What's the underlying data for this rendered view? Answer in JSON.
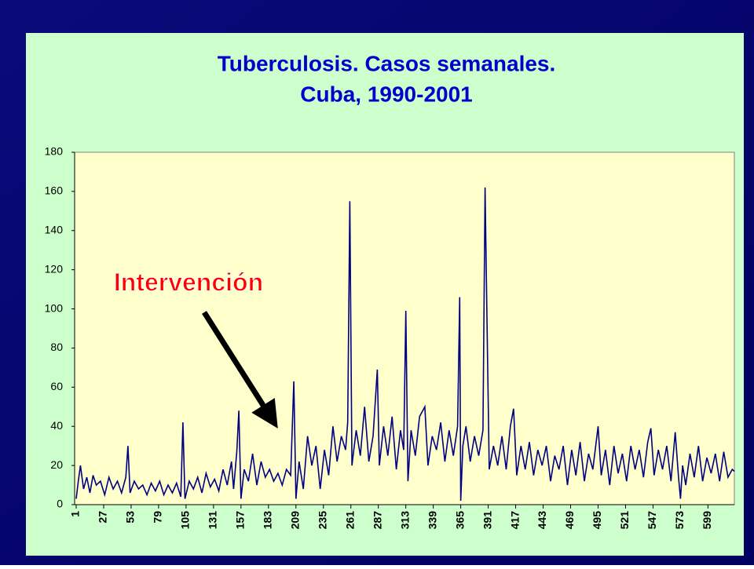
{
  "chart_data": {
    "type": "line",
    "title": "Tuberculosis. Casos semanales.",
    "subtitle": "Cuba, 1990-2001",
    "annotation": "Intervención",
    "xlim": [
      1,
      624
    ],
    "xticks": [
      1,
      27,
      53,
      79,
      105,
      131,
      157,
      183,
      209,
      235,
      261,
      287,
      313,
      339,
      365,
      391,
      417,
      443,
      469,
      495,
      521,
      547,
      573,
      599
    ],
    "ylim": [
      0,
      180
    ],
    "yticks": [
      0,
      20,
      40,
      60,
      80,
      100,
      120,
      140,
      160,
      180
    ],
    "grid": false,
    "series": [
      {
        "color": "#000080",
        "x": [
          1,
          3,
          5,
          8,
          11,
          14,
          17,
          20,
          24,
          28,
          32,
          36,
          40,
          44,
          48,
          50,
          52,
          56,
          60,
          64,
          68,
          72,
          76,
          80,
          84,
          88,
          92,
          96,
          100,
          102,
          104,
          108,
          112,
          116,
          120,
          124,
          128,
          132,
          136,
          140,
          144,
          148,
          150,
          153,
          155,
          157,
          160,
          164,
          168,
          172,
          176,
          180,
          184,
          188,
          192,
          196,
          200,
          204,
          207,
          209,
          212,
          216,
          220,
          224,
          228,
          232,
          236,
          240,
          244,
          248,
          252,
          256,
          258,
          260,
          262,
          266,
          270,
          274,
          278,
          282,
          286,
          288,
          292,
          296,
          300,
          304,
          308,
          311,
          313,
          315,
          318,
          322,
          326,
          331,
          334,
          338,
          342,
          346,
          350,
          354,
          358,
          362,
          364,
          365,
          367,
          370,
          374,
          378,
          382,
          386,
          388,
          390,
          392,
          396,
          400,
          404,
          408,
          412,
          415,
          418,
          422,
          426,
          430,
          434,
          438,
          442,
          446,
          450,
          454,
          458,
          462,
          466,
          470,
          474,
          478,
          482,
          486,
          490,
          495,
          498,
          502,
          506,
          510,
          514,
          518,
          522,
          526,
          530,
          534,
          538,
          542,
          545,
          548,
          552,
          556,
          560,
          564,
          568,
          571,
          573,
          575,
          578,
          582,
          586,
          590,
          594,
          598,
          602,
          606,
          610,
          614,
          618,
          622,
          624
        ],
        "values": [
          3,
          12,
          20,
          8,
          14,
          6,
          15,
          10,
          12,
          5,
          14,
          8,
          12,
          6,
          14,
          30,
          6,
          12,
          8,
          10,
          5,
          11,
          7,
          12,
          5,
          10,
          6,
          11,
          4,
          42,
          3,
          12,
          8,
          14,
          6,
          16,
          9,
          13,
          7,
          18,
          10,
          22,
          8,
          27,
          48,
          3,
          18,
          12,
          26,
          10,
          22,
          14,
          18,
          12,
          16,
          10,
          18,
          15,
          63,
          3,
          22,
          8,
          35,
          20,
          30,
          8,
          28,
          15,
          40,
          22,
          35,
          28,
          42,
          155,
          20,
          38,
          25,
          50,
          22,
          35,
          69,
          20,
          40,
          25,
          45,
          18,
          38,
          28,
          99,
          12,
          38,
          25,
          45,
          50,
          20,
          35,
          28,
          42,
          22,
          38,
          25,
          40,
          106,
          2,
          30,
          40,
          22,
          35,
          25,
          38,
          162,
          90,
          18,
          30,
          20,
          35,
          18,
          40,
          49,
          15,
          30,
          18,
          32,
          15,
          28,
          20,
          30,
          12,
          25,
          18,
          30,
          10,
          28,
          15,
          32,
          12,
          26,
          18,
          40,
          15,
          28,
          10,
          30,
          16,
          26,
          12,
          30,
          18,
          28,
          14,
          32,
          39,
          15,
          28,
          18,
          30,
          12,
          37,
          15,
          3,
          20,
          10,
          26,
          14,
          30,
          12,
          24,
          16,
          26,
          12,
          27,
          14,
          18,
          17
        ]
      }
    ]
  }
}
